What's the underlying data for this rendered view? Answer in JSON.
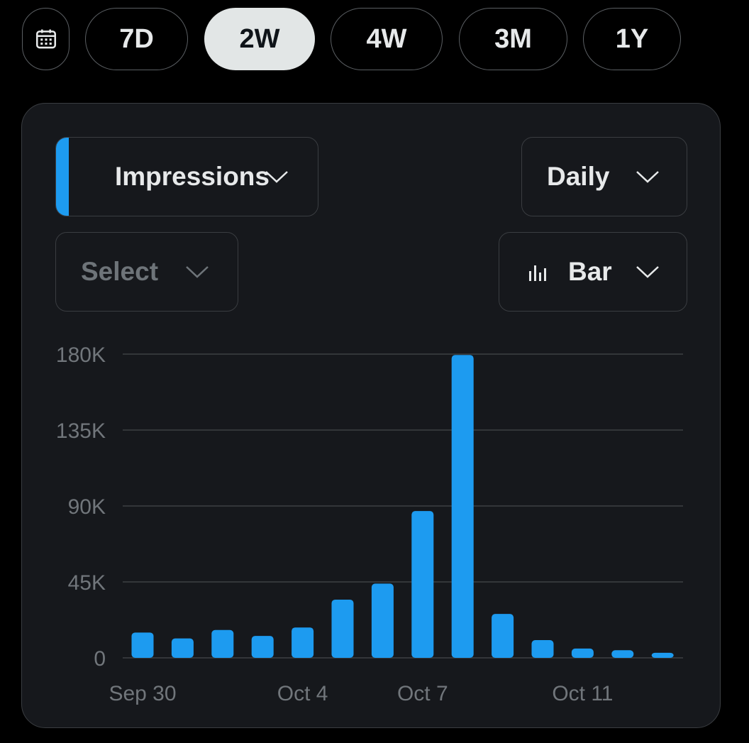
{
  "range_selector": {
    "calendar_icon": "calendar-icon",
    "options": [
      {
        "label": "7D",
        "active": false
      },
      {
        "label": "2W",
        "active": true
      },
      {
        "label": "4W",
        "active": false
      },
      {
        "label": "3M",
        "active": false
      },
      {
        "label": "1Y",
        "active": false
      }
    ]
  },
  "controls": {
    "metric": "Impressions",
    "interval": "Daily",
    "compare_placeholder": "Select",
    "chart_type": "Bar"
  },
  "colors": {
    "accent": "#1d9bf0",
    "active_pill": "#e2e6e6",
    "card_bg": "#16181c",
    "gridline": "#333639"
  },
  "chart_data": {
    "type": "bar",
    "x": [
      "Sep 30",
      "Oct 1",
      "Oct 2",
      "Oct 3",
      "Oct 4",
      "Oct 5",
      "Oct 6",
      "Oct 7",
      "Oct 8",
      "Oct 9",
      "Oct 10",
      "Oct 11",
      "Oct 12",
      "Oct 13"
    ],
    "x_tick_labels": [
      "Sep 30",
      "Oct 4",
      "Oct 7",
      "Oct 11"
    ],
    "values": [
      15000,
      11500,
      16500,
      13000,
      18000,
      34500,
      44000,
      87000,
      179500,
      26000,
      10500,
      5500,
      4500,
      3000
    ],
    "y_ticks": [
      0,
      45000,
      90000,
      135000,
      180000
    ],
    "y_tick_labels": [
      "0",
      "45K",
      "90K",
      "135K",
      "180K"
    ],
    "ylim": [
      0,
      180000
    ],
    "grid": true,
    "bar_color": "#1d9bf0"
  }
}
